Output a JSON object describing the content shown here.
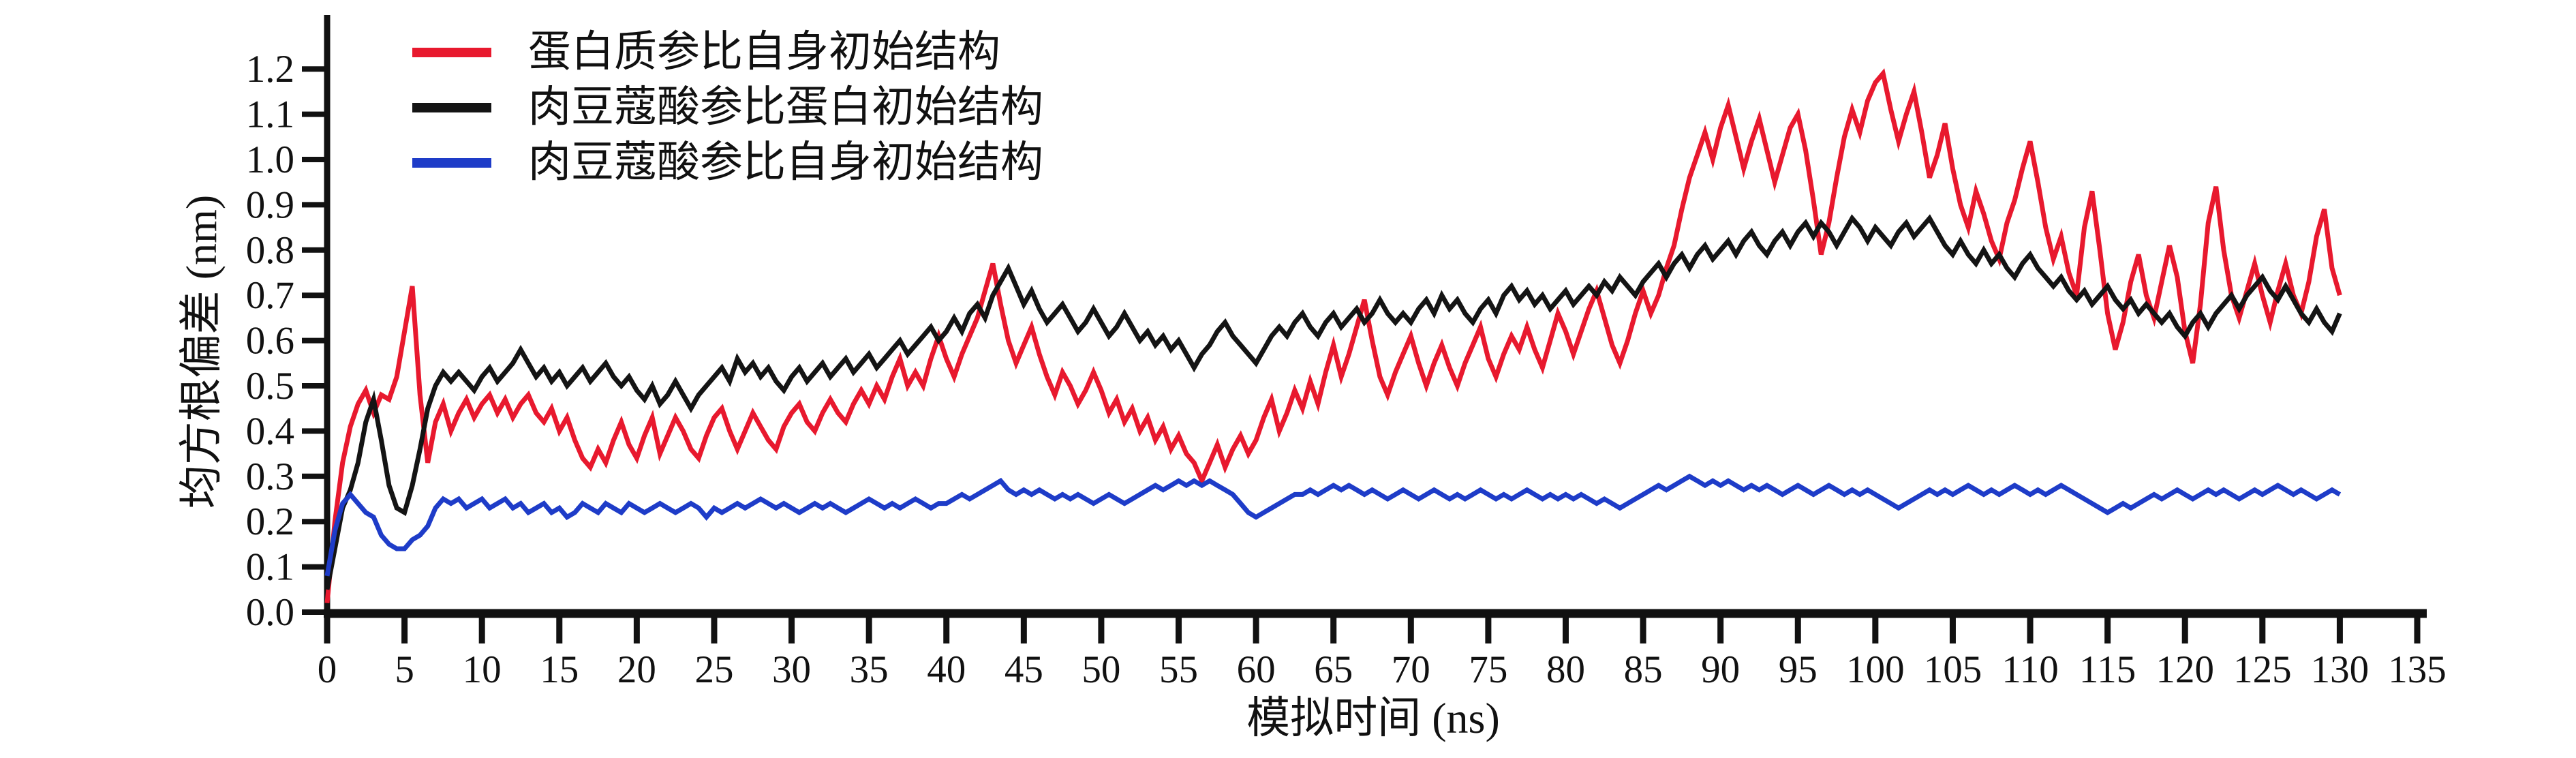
{
  "chart_data": {
    "type": "line",
    "title": "",
    "xlabel": "模拟时间 (ns)",
    "ylabel": "均方根偏差 (nm)",
    "xlim": [
      0,
      135
    ],
    "ylim": [
      0.0,
      1.2
    ],
    "grid": false,
    "legend_position": "top-left",
    "x_tick_labels": [
      "0",
      "5",
      "10",
      "15",
      "20",
      "25",
      "30",
      "35",
      "40",
      "45",
      "50",
      "55",
      "60",
      "65",
      "70",
      "75",
      "80",
      "85",
      "90",
      "95",
      "100",
      "105",
      "110",
      "115",
      "120",
      "125",
      "130",
      "135"
    ],
    "y_tick_labels": [
      "0.0",
      "0.1",
      "0.2",
      "0.3",
      "0.4",
      "0.5",
      "0.6",
      "0.7",
      "0.8",
      "0.9",
      "1.0",
      "1.1",
      "1.2"
    ],
    "x_start_ns": 0,
    "x_step_ns": 0.5,
    "value_scale": 0.01,
    "series": [
      {
        "name": "蛋白质参比自身初始结构",
        "color": "#e8192e",
        "values": [
          2,
          20,
          33,
          41,
          46,
          49,
          44,
          48,
          47,
          52,
          62,
          72,
          48,
          33,
          42,
          46,
          40,
          44,
          47,
          43,
          46,
          48,
          44,
          47,
          43,
          46,
          48,
          44,
          42,
          45,
          40,
          43,
          38,
          34,
          32,
          36,
          33,
          38,
          42,
          37,
          34,
          39,
          43,
          35,
          39,
          43,
          40,
          36,
          34,
          39,
          43,
          45,
          40,
          36,
          40,
          44,
          41,
          38,
          36,
          41,
          44,
          46,
          42,
          40,
          44,
          47,
          44,
          42,
          46,
          49,
          46,
          50,
          47,
          52,
          56,
          50,
          53,
          50,
          56,
          61,
          56,
          52,
          57,
          61,
          65,
          71,
          77,
          68,
          60,
          55,
          59,
          63,
          57,
          52,
          48,
          53,
          50,
          46,
          49,
          53,
          49,
          44,
          47,
          42,
          45,
          40,
          43,
          38,
          41,
          36,
          39,
          35,
          33,
          29,
          33,
          37,
          32,
          36,
          39,
          35,
          38,
          43,
          47,
          40,
          44,
          49,
          45,
          51,
          46,
          53,
          59,
          52,
          57,
          63,
          69,
          60,
          52,
          48,
          53,
          57,
          61,
          55,
          50,
          55,
          59,
          54,
          50,
          55,
          59,
          63,
          56,
          52,
          57,
          61,
          58,
          63,
          58,
          54,
          60,
          66,
          62,
          57,
          62,
          67,
          71,
          65,
          59,
          55,
          60,
          66,
          71,
          66,
          70,
          76,
          81,
          89,
          96,
          101,
          106,
          100,
          107,
          112,
          105,
          98,
          104,
          109,
          102,
          95,
          101,
          107,
          110,
          102,
          91,
          79,
          86,
          96,
          105,
          111,
          106,
          113,
          117,
          119,
          111,
          104,
          110,
          115,
          106,
          96,
          101,
          108,
          98,
          90,
          85,
          93,
          88,
          82,
          78,
          86,
          91,
          98,
          104,
          95,
          85,
          78,
          83,
          75,
          70,
          85,
          93,
          80,
          66,
          58,
          64,
          73,
          79,
          70,
          65,
          73,
          81,
          74,
          62,
          55,
          68,
          86,
          94,
          80,
          70,
          65,
          71,
          77,
          70,
          64,
          71,
          77,
          70,
          66,
          73,
          83,
          89,
          76,
          70
        ]
      },
      {
        "name": "肉豆蔻酸参比蛋白初始结构",
        "color": "#141414",
        "values": [
          5,
          14,
          23,
          27,
          33,
          42,
          47,
          38,
          28,
          23,
          22,
          28,
          36,
          45,
          50,
          53,
          51,
          53,
          51,
          49,
          52,
          54,
          51,
          53,
          55,
          58,
          55,
          52,
          54,
          51,
          53,
          50,
          52,
          54,
          51,
          53,
          55,
          52,
          50,
          52,
          49,
          47,
          50,
          46,
          48,
          51,
          48,
          45,
          48,
          50,
          52,
          54,
          51,
          56,
          53,
          55,
          52,
          54,
          51,
          49,
          52,
          54,
          51,
          53,
          55,
          52,
          54,
          56,
          53,
          55,
          57,
          54,
          56,
          58,
          60,
          57,
          59,
          61,
          63,
          60,
          62,
          65,
          62,
          66,
          68,
          65,
          70,
          73,
          76,
          72,
          68,
          71,
          67,
          64,
          66,
          68,
          65,
          62,
          64,
          67,
          64,
          61,
          63,
          66,
          63,
          60,
          62,
          59,
          61,
          58,
          60,
          57,
          54,
          57,
          59,
          62,
          64,
          61,
          59,
          57,
          55,
          58,
          61,
          63,
          61,
          64,
          66,
          63,
          61,
          64,
          66,
          63,
          65,
          67,
          64,
          66,
          69,
          66,
          64,
          66,
          64,
          67,
          69,
          66,
          70,
          67,
          69,
          66,
          64,
          67,
          69,
          66,
          70,
          72,
          69,
          71,
          68,
          70,
          67,
          69,
          71,
          68,
          70,
          72,
          70,
          73,
          71,
          74,
          72,
          70,
          73,
          75,
          77,
          74,
          77,
          79,
          76,
          79,
          81,
          78,
          80,
          82,
          79,
          82,
          84,
          81,
          79,
          82,
          84,
          81,
          84,
          86,
          83,
          86,
          84,
          81,
          84,
          87,
          85,
          82,
          85,
          83,
          81,
          84,
          86,
          83,
          85,
          87,
          84,
          81,
          79,
          82,
          79,
          77,
          80,
          77,
          79,
          76,
          74,
          77,
          79,
          76,
          74,
          72,
          74,
          71,
          69,
          71,
          68,
          70,
          72,
          69,
          67,
          69,
          66,
          68,
          66,
          64,
          66,
          63,
          61,
          64,
          66,
          63,
          66,
          68,
          70,
          67,
          70,
          72,
          74,
          71,
          69,
          72,
          69,
          66,
          64,
          67,
          64,
          62,
          66
        ]
      },
      {
        "name": "肉豆蔻酸参比自身初始结构",
        "color": "#1e3cc8",
        "values": [
          8,
          18,
          24,
          26,
          24,
          22,
          21,
          17,
          15,
          14,
          14,
          16,
          17,
          19,
          23,
          25,
          24,
          25,
          23,
          24,
          25,
          23,
          24,
          25,
          23,
          24,
          22,
          23,
          24,
          22,
          23,
          21,
          22,
          24,
          23,
          22,
          24,
          23,
          22,
          24,
          23,
          22,
          23,
          24,
          23,
          22,
          23,
          24,
          23,
          21,
          23,
          22,
          23,
          24,
          23,
          24,
          25,
          24,
          23,
          24,
          23,
          22,
          23,
          24,
          23,
          24,
          23,
          22,
          23,
          24,
          25,
          24,
          23,
          24,
          23,
          24,
          25,
          24,
          23,
          24,
          24,
          25,
          26,
          25,
          26,
          27,
          28,
          29,
          27,
          26,
          27,
          26,
          27,
          26,
          25,
          26,
          25,
          26,
          25,
          24,
          25,
          26,
          25,
          24,
          25,
          26,
          27,
          28,
          27,
          28,
          29,
          28,
          29,
          28,
          29,
          28,
          27,
          26,
          24,
          22,
          21,
          22,
          23,
          24,
          25,
          26,
          26,
          27,
          26,
          27,
          28,
          27,
          28,
          27,
          26,
          27,
          26,
          25,
          26,
          27,
          26,
          25,
          26,
          27,
          26,
          25,
          26,
          25,
          26,
          27,
          26,
          25,
          26,
          25,
          26,
          27,
          26,
          25,
          26,
          25,
          26,
          25,
          26,
          25,
          24,
          25,
          24,
          23,
          24,
          25,
          26,
          27,
          28,
          27,
          28,
          29,
          30,
          29,
          28,
          29,
          28,
          29,
          28,
          27,
          28,
          27,
          28,
          27,
          26,
          27,
          28,
          27,
          26,
          27,
          28,
          27,
          26,
          27,
          26,
          27,
          26,
          25,
          24,
          23,
          24,
          25,
          26,
          27,
          26,
          27,
          26,
          27,
          28,
          27,
          26,
          27,
          26,
          27,
          28,
          27,
          26,
          27,
          26,
          27,
          28,
          27,
          26,
          25,
          24,
          23,
          22,
          23,
          24,
          23,
          24,
          25,
          26,
          25,
          26,
          27,
          26,
          25,
          26,
          27,
          26,
          27,
          26,
          25,
          26,
          27,
          26,
          27,
          28,
          27,
          26,
          27,
          26,
          25,
          26,
          27,
          26
        ]
      }
    ]
  }
}
